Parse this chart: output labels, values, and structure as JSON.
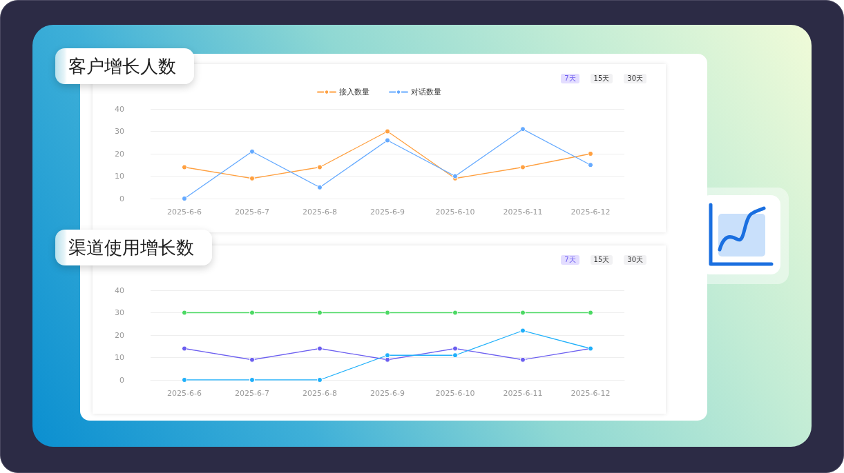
{
  "chart_data": [
    {
      "type": "line",
      "title": "客户增长人数",
      "categories": [
        "2025-6-6",
        "2025-6-7",
        "2025-6-8",
        "2025-6-9",
        "2025-6-10",
        "2025-6-11",
        "2025-6-12"
      ],
      "series": [
        {
          "name": "接入数量",
          "color": "#ffa040",
          "values": [
            14,
            9,
            14,
            30,
            9,
            14,
            20
          ]
        },
        {
          "name": "对话数量",
          "color": "#65aaff",
          "values": [
            0,
            21,
            5,
            26,
            10,
            31,
            15
          ]
        }
      ],
      "ylim": [
        0,
        40
      ],
      "yticks": [
        0,
        10,
        20,
        30,
        40
      ],
      "grid": "y",
      "legend": "top",
      "marker": "circle",
      "line_style": "solid",
      "annotations": [
        "7天",
        "15天",
        "30天"
      ]
    },
    {
      "type": "line",
      "title": "渠道使用增长数",
      "categories": [
        "2025-6-6",
        "2025-6-7",
        "2025-6-8",
        "2025-6-9",
        "2025-6-10",
        "2025-6-11",
        "2025-6-12"
      ],
      "series": [
        {
          "color": "#6c5ff0",
          "values": [
            14,
            9,
            14,
            9,
            14,
            9,
            14
          ]
        },
        {
          "color": "#4cd964",
          "values": [
            30,
            30,
            30,
            30,
            30,
            30,
            30
          ]
        },
        {
          "color": "#20b0fa",
          "values": [
            0,
            0,
            0,
            11,
            11,
            22,
            14
          ]
        }
      ],
      "ylim": [
        0,
        40
      ],
      "yticks": [
        0,
        10,
        20,
        30,
        40
      ],
      "grid": "y",
      "marker": "circle",
      "line_style": "solid",
      "annotations": [
        "7天",
        "15天",
        "30天"
      ]
    }
  ]
}
